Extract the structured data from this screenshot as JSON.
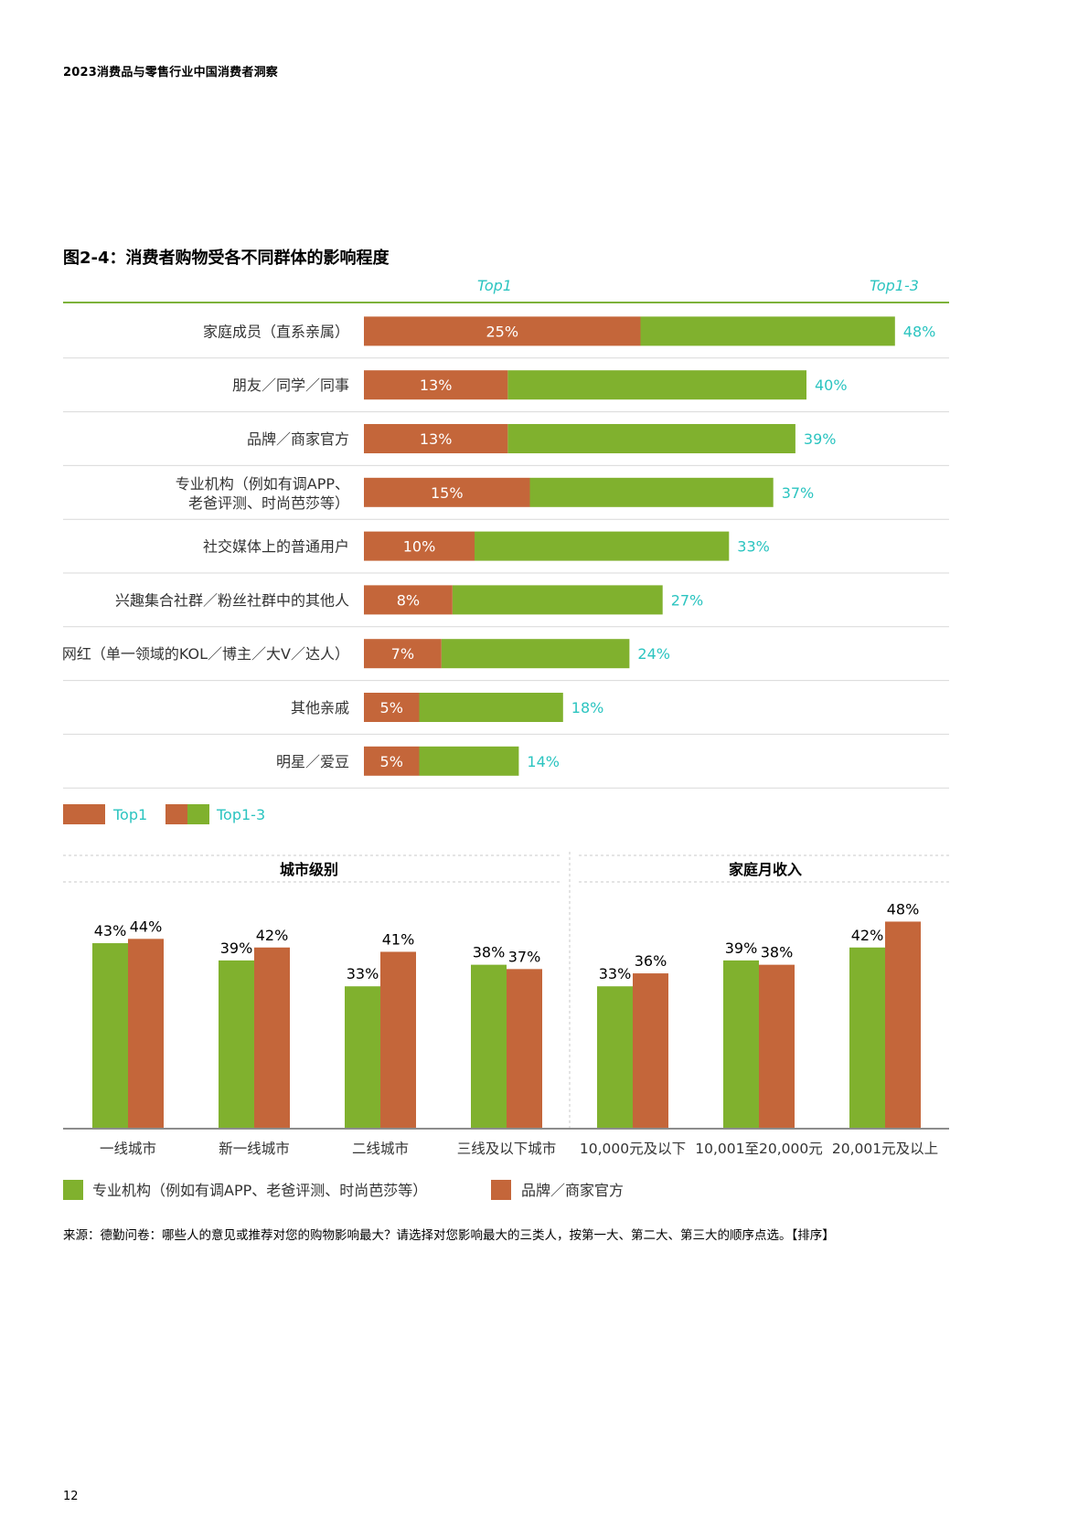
{
  "header": {
    "report_title": "2023消费品与零售行业中国消费者洞察"
  },
  "figure": {
    "title": "图2-4：消费者购物受各不同群体的影响程度"
  },
  "colors": {
    "orange": "#C4663A",
    "green": "#80B12E",
    "teal": "#2BC4C0",
    "rule_green": "#7DB23A",
    "row_line": "#D9D9D9",
    "axis": "#8C8C8C"
  },
  "chart_data": [
    {
      "type": "bar",
      "orientation": "horizontal",
      "stacked_overlay": true,
      "column_headers": [
        "Top1",
        "Top1-3"
      ],
      "categories": [
        [
          "家庭成员（直系亲属）"
        ],
        [
          "朋友／同学／同事"
        ],
        [
          "品牌／商家官方"
        ],
        [
          "专业机构（例如有调APP、",
          "老爸评测、时尚芭莎等）"
        ],
        [
          "社交媒体上的普通用户"
        ],
        [
          "兴趣集合社群／粉丝社群中的其他人"
        ],
        [
          "网红（单一领域的KOL／博主／大V／达人）"
        ],
        [
          "其他亲戚"
        ],
        [
          "明星／爱豆"
        ]
      ],
      "series": [
        {
          "name": "Top1",
          "values": [
            25,
            13,
            13,
            15,
            10,
            8,
            7,
            5,
            5
          ],
          "labels": [
            "25%",
            "13%",
            "13%",
            "15%",
            "10%",
            "8%",
            "7%",
            "5%",
            "5%"
          ]
        },
        {
          "name": "Top1-3",
          "values": [
            48,
            40,
            39,
            37,
            33,
            27,
            24,
            18,
            14
          ],
          "labels": [
            "48%",
            "40%",
            "39%",
            "37%",
            "33%",
            "27%",
            "24%",
            "18%",
            "14%"
          ]
        }
      ],
      "legend": {
        "items": [
          "Top1",
          "Top1-3"
        ],
        "placement": "bottom-left"
      },
      "grid": false
    },
    {
      "type": "bar",
      "orientation": "vertical",
      "groups": [
        "城市级别",
        "家庭月收入"
      ],
      "categories": [
        "一线城市",
        "新一线城市",
        "二线城市",
        "三线及以下城市",
        "10,000元及以下",
        "10,001至20,000元",
        "20,001元及以上"
      ],
      "category_group": [
        0,
        0,
        0,
        0,
        1,
        1,
        1
      ],
      "series": [
        {
          "name": "专业机构（例如有调APP、老爸评测、时尚芭莎等）",
          "values": [
            43,
            39,
            33,
            38,
            33,
            39,
            42
          ],
          "labels": [
            "43%",
            "39%",
            "33%",
            "38%",
            "33%",
            "39%",
            "42%"
          ]
        },
        {
          "name": "品牌／商家官方",
          "values": [
            44,
            42,
            41,
            37,
            36,
            38,
            48
          ],
          "labels": [
            "44%",
            "42%",
            "41%",
            "37%",
            "36%",
            "38%",
            "48%"
          ]
        }
      ],
      "legend": {
        "placement": "bottom-left"
      },
      "grid": false
    }
  ],
  "footer": {
    "source": "来源：德勤问卷：哪些人的意见或推荐对您的购物影响最大？请选择对您影响最大的三类人，按第一大、第二大、第三大的顺序点选。【排序】",
    "page_number": "12"
  }
}
